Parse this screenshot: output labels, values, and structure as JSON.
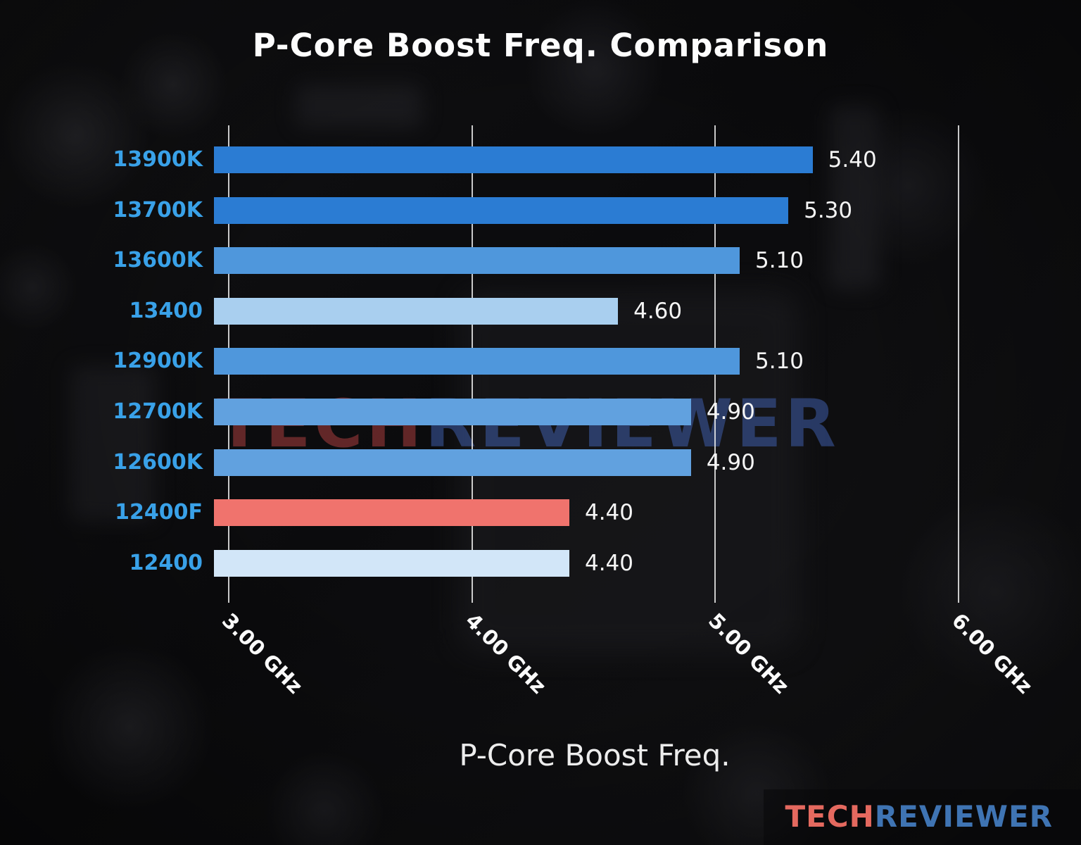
{
  "chart_data": {
    "type": "bar",
    "orientation": "horizontal",
    "title": "P-Core Boost Freq. Comparison",
    "xlabel": "P-Core Boost Freq.",
    "ylabel": "",
    "categories": [
      "13900K",
      "13700K",
      "13600K",
      "13400",
      "12900K",
      "12700K",
      "12600K",
      "12400F",
      "12400"
    ],
    "values": [
      5.4,
      5.3,
      5.1,
      4.6,
      5.1,
      4.9,
      4.9,
      4.4,
      4.4
    ],
    "values_display": [
      "5.40",
      "5.30",
      "5.10",
      "4.60",
      "5.10",
      "4.90",
      "4.90",
      "4.40",
      "4.40"
    ],
    "bar_colors": [
      "#2b7cd3",
      "#2b7cd3",
      "#4f97dc",
      "#a9cfef",
      "#4f97dc",
      "#61a1df",
      "#61a1df",
      "#f0736d",
      "#d2e6f8"
    ],
    "unit": "GHz",
    "x_ticks": [
      "3.00 GHz",
      "4.00 GHz",
      "5.00 GHz",
      "6.00 GHz"
    ],
    "x_tick_values": [
      3,
      4,
      5,
      6
    ],
    "xlim": [
      2.94,
      6.28
    ],
    "grid": true,
    "grid_color": "#ebebeb",
    "category_label_color": "#39a1e8",
    "value_label_color": "#f5f5f5",
    "highlight_category": "12400F",
    "highlight_color": "#f0736d"
  },
  "watermark_center": {
    "part1": "TECH",
    "part2": "REVIEWER"
  },
  "watermark_footer": {
    "part1": "TECH",
    "part2": "REVIEWER"
  }
}
